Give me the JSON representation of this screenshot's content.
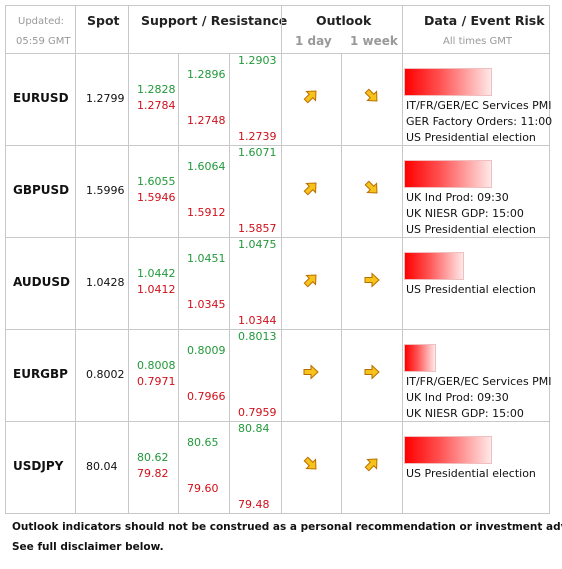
{
  "header": {
    "updated": "Updated:",
    "time": "05:59 GMT",
    "spot": "Spot",
    "support_resistance": "Support / Resistance",
    "outlook": "Outlook",
    "day": "1 day",
    "week": "1 week",
    "event_risk": "Data / Event Risk",
    "times": "All times GMT"
  },
  "table": {
    "rows": [
      {
        "pair": "EURUSD",
        "spot": "1.2799",
        "r1": "1.2828",
        "s1": "1.2784",
        "r2": "1.2896",
        "s2": "1.2748",
        "r3": "1.2903",
        "s3": "1.2739",
        "events": [
          "IT/FR/GER/EC Services PMI",
          "GER Factory Orders: 11:00",
          "US Presidential election"
        ]
      },
      {
        "pair": "GBPUSD",
        "spot": "1.5996",
        "r1": "1.6055",
        "s1": "1.5946",
        "r2": "1.6064",
        "s2": "1.5912",
        "r3": "1.6071",
        "s3": "1.5857",
        "events": [
          "UK Ind Prod: 09:30",
          "UK NIESR GDP: 15:00",
          "US Presidential election"
        ]
      },
      {
        "pair": "AUDUSD",
        "spot": "1.0428",
        "r1": "1.0442",
        "s1": "1.0412",
        "r2": "1.0451",
        "s2": "1.0345",
        "r3": "1.0475",
        "s3": "1.0344",
        "events": [
          "US Presidential election"
        ]
      },
      {
        "pair": "EURGBP",
        "spot": "0.8002",
        "r1": "0.8008",
        "s1": "0.7971",
        "r2": "0.8009",
        "s2": "0.7966",
        "r3": "0.8013",
        "s3": "0.7959",
        "events": [
          "IT/FR/GER/EC Services PMI",
          "UK Ind Prod: 09:30",
          "UK NIESR GDP: 15:00"
        ]
      },
      {
        "pair": "USDJPY",
        "spot": "80.04",
        "r1": "80.62",
        "s1": "79.82",
        "r2": "80.65",
        "s2": "79.60",
        "r3": "80.84",
        "s3": "79.48",
        "events": [
          "US Presidential election"
        ]
      }
    ]
  },
  "footer": {
    "line1": "Outlook indicators should not be construed as a personal recommendation or investment advice.",
    "line2": "See full disclaimer below."
  }
}
